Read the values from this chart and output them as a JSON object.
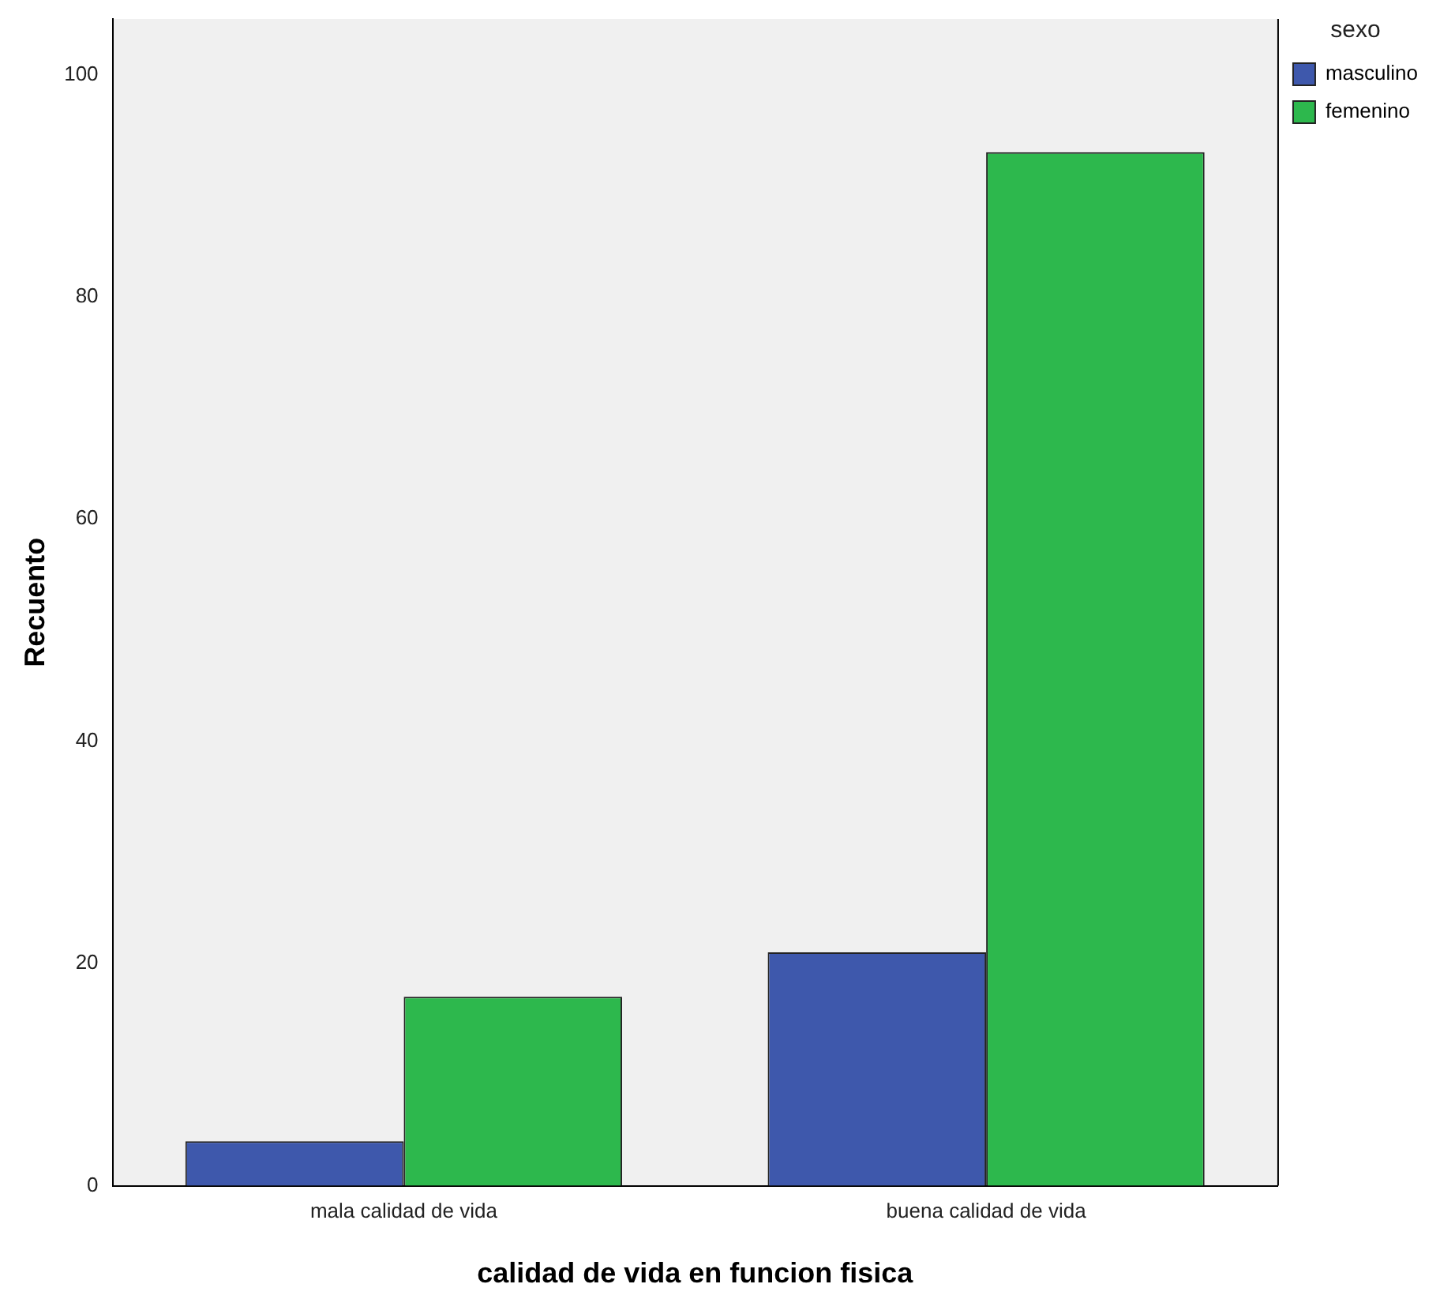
{
  "chart_data": {
    "type": "bar",
    "xlabel": "calidad de vida en funcion fisica",
    "ylabel": "Recuento",
    "legend_title": "sexo",
    "categories": [
      "mala calidad de vida",
      "buena calidad de vida"
    ],
    "series": [
      {
        "name": "masculino",
        "color": "#3e58ac",
        "values": [
          4,
          21
        ]
      },
      {
        "name": "femenino",
        "color": "#2db84d",
        "values": [
          17,
          93
        ]
      }
    ],
    "ylim": [
      0,
      105
    ],
    "yticks": [
      0,
      20,
      40,
      60,
      80,
      100
    ],
    "grid": false,
    "legend": "top right"
  }
}
